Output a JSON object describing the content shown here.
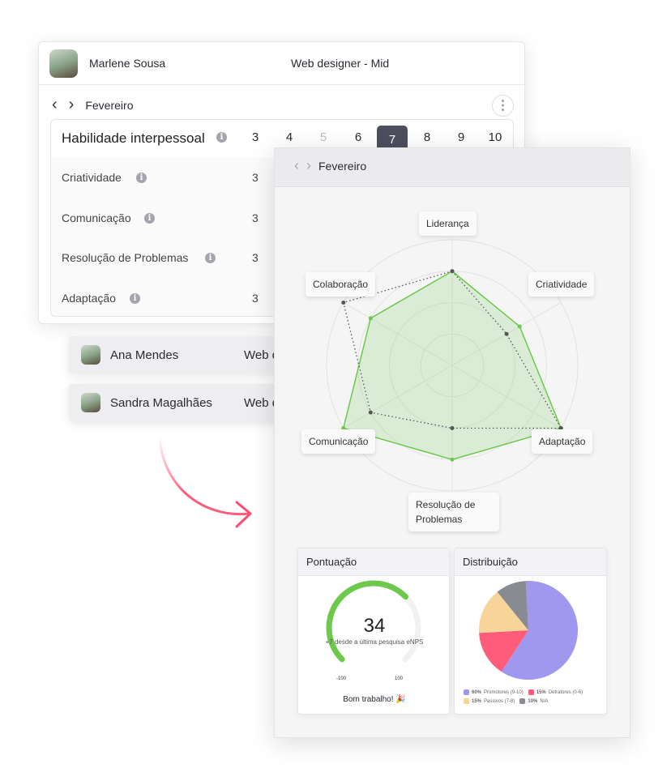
{
  "employee": {
    "name": "Marlene Sousa",
    "role": "Web designer - Mid"
  },
  "nav": {
    "month": "Fevereiro"
  },
  "table": {
    "title": "Habilidade interpessoal",
    "scale": [
      "3",
      "4",
      "5",
      "6",
      "7",
      "8",
      "9",
      "10"
    ],
    "selected": "7",
    "disabled": "5",
    "rows": [
      {
        "label": "Criatividade",
        "value": "3"
      },
      {
        "label": "Comunicação",
        "value": "3"
      },
      {
        "label": "Resolução de Problemas",
        "value": "3"
      },
      {
        "label": "Adaptação",
        "value": "3"
      }
    ]
  },
  "people": [
    {
      "name": "Ana Mendes",
      "role": "Web d"
    },
    {
      "name": "Sandra Magalhães",
      "role": "Web d"
    }
  ],
  "panel": {
    "month": "Fevereiro"
  },
  "radar": {
    "axes": [
      "Liderança",
      "Criatividade",
      "Adaptação",
      "Resolução de Problemas",
      "Comunicação",
      "Colaboração"
    ],
    "max": 10,
    "series": [
      {
        "style": "solid",
        "color": "#6cc94a",
        "values": [
          7.5,
          6.2,
          10,
          7.5,
          10,
          7.5
        ]
      },
      {
        "style": "dotted",
        "color": "#555555",
        "values": [
          7.5,
          5,
          10,
          5,
          7.5,
          10
        ]
      }
    ]
  },
  "score": {
    "title": "Pontuação",
    "value": "34",
    "numeric": 34,
    "min_label": "-100",
    "max_label": "100",
    "min": -100,
    "max": 100,
    "note": "+7 desde a última pesquisa eNPS",
    "footer": "Bom trabalho! 🎉",
    "color": "#6cc94a"
  },
  "distribution": {
    "title": "Distribuição",
    "slices": [
      {
        "pct": "60%",
        "label": "Promotores (9-10)",
        "value": 60,
        "color": "#9f98ee"
      },
      {
        "pct": "15%",
        "label": "Detratores (0-6)",
        "value": 15,
        "color": "#ff5c7c"
      },
      {
        "pct": "15%",
        "label": "Passivos (7-8)",
        "value": 15,
        "color": "#f7d49a"
      },
      {
        "pct": "10%",
        "label": "N/A",
        "value": 10,
        "color": "#888b91"
      }
    ]
  }
}
